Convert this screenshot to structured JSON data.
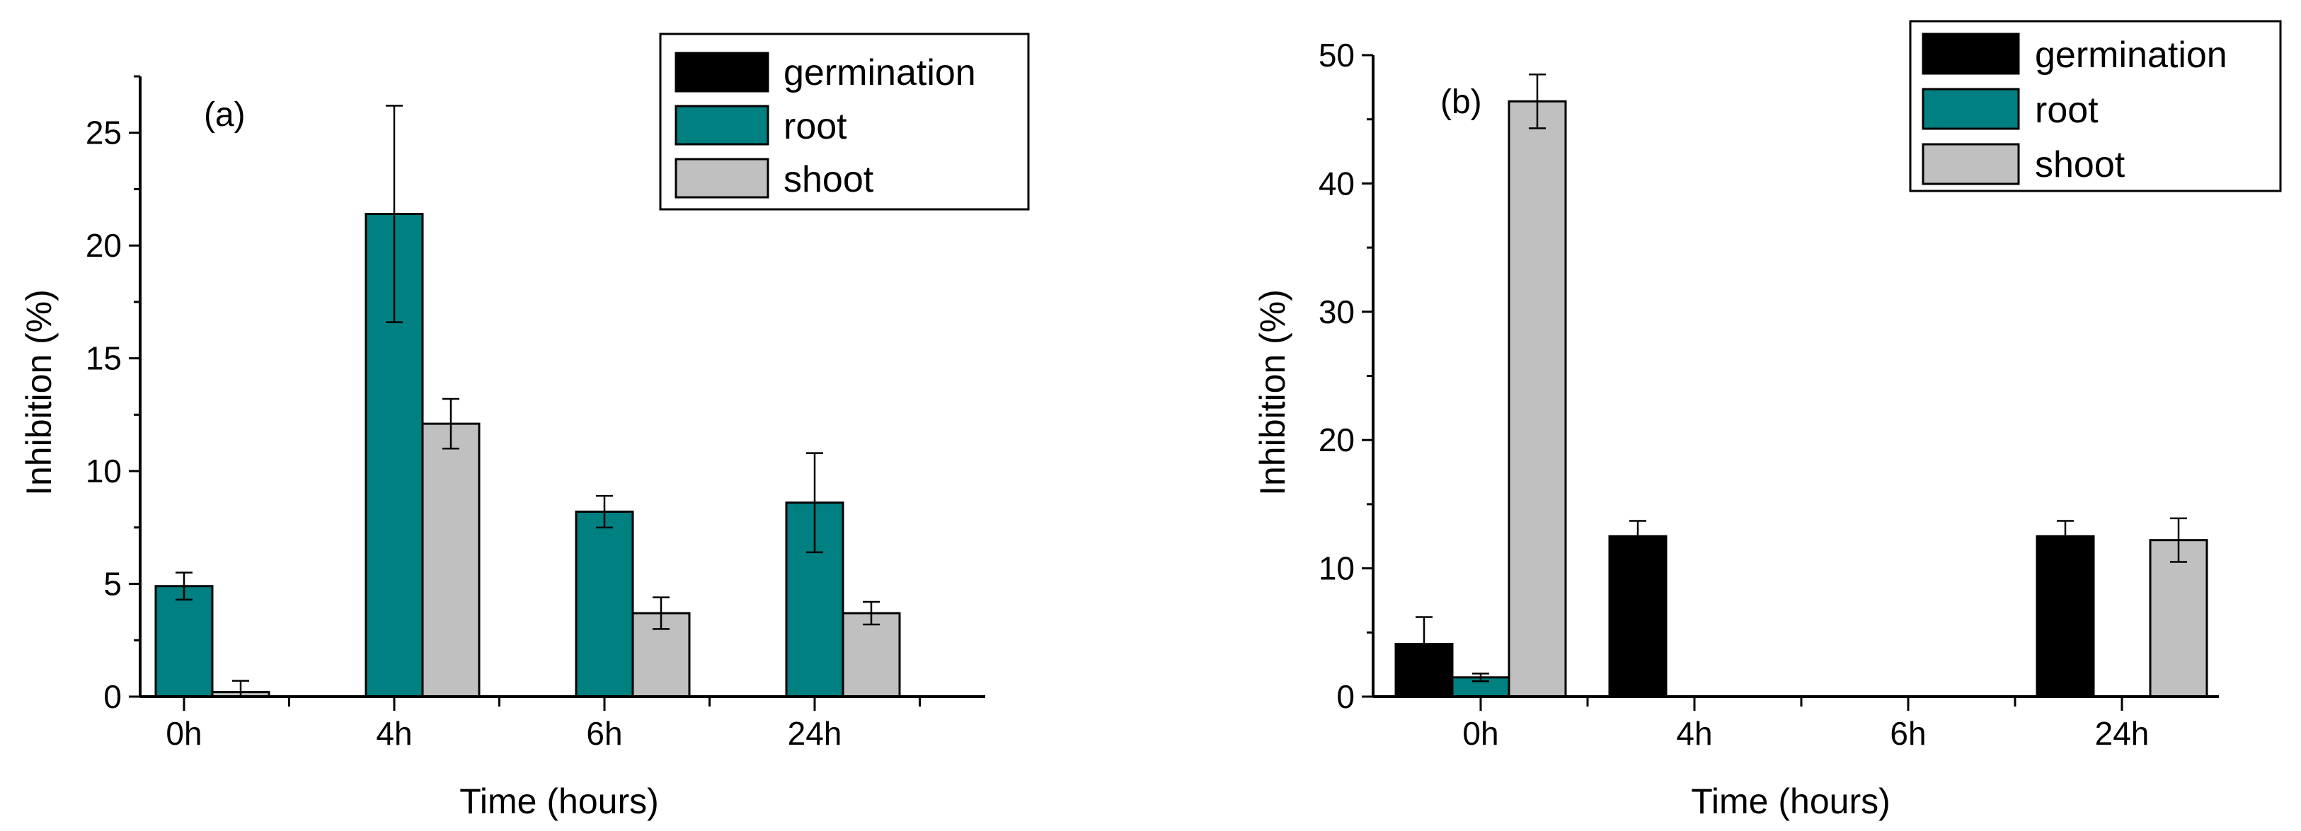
{
  "colors": {
    "germination": "#000000",
    "root": "#008080",
    "shoot": "#c0c0c0",
    "axis": "#000000",
    "background": "#ffffff"
  },
  "chart_data": [
    {
      "type": "bar",
      "panel_label": "(a)",
      "xlabel": "Time (hours)",
      "ylabel": "Inhibition (%)",
      "ylim": [
        0,
        27.5
      ],
      "yticks": [
        0,
        5,
        10,
        15,
        20,
        25
      ],
      "ytick_labels": [
        "0",
        "5",
        "10",
        "15",
        "20",
        "25"
      ],
      "categories": [
        "0h",
        "4h",
        "6h",
        "24h"
      ],
      "legend_position": "top-right",
      "series": [
        {
          "name": "germination",
          "color_key": "germination",
          "values": [
            0,
            0,
            0,
            0
          ],
          "errors": [
            0,
            0,
            0,
            0
          ]
        },
        {
          "name": "root",
          "color_key": "root",
          "values": [
            4.9,
            21.4,
            8.2,
            8.6
          ],
          "errors": [
            0.6,
            4.8,
            0.7,
            2.2
          ]
        },
        {
          "name": "shoot",
          "color_key": "shoot",
          "values": [
            0.2,
            12.1,
            3.7,
            3.7
          ],
          "errors": [
            0.5,
            1.1,
            0.7,
            0.5
          ]
        }
      ]
    },
    {
      "type": "bar",
      "panel_label": "(b)",
      "xlabel": "Time (hours)",
      "ylabel": "Inhibition (%)",
      "ylim": [
        0,
        50
      ],
      "yticks": [
        0,
        10,
        20,
        30,
        40,
        50
      ],
      "ytick_labels": [
        "0",
        "10",
        "20",
        "30",
        "40",
        "50"
      ],
      "categories": [
        "0h",
        "4h",
        "6h",
        "24h"
      ],
      "legend_position": "top-right",
      "series": [
        {
          "name": "germination",
          "color_key": "germination",
          "values": [
            4.1,
            12.5,
            0,
            12.5
          ],
          "errors": [
            2.1,
            1.2,
            0,
            1.2
          ]
        },
        {
          "name": "root",
          "color_key": "root",
          "values": [
            1.5,
            0,
            0,
            0
          ],
          "errors": [
            0.3,
            0,
            0,
            0
          ]
        },
        {
          "name": "shoot",
          "color_key": "shoot",
          "values": [
            46.4,
            0,
            0,
            12.2
          ],
          "errors": [
            2.1,
            0,
            0,
            1.7
          ]
        }
      ]
    }
  ]
}
